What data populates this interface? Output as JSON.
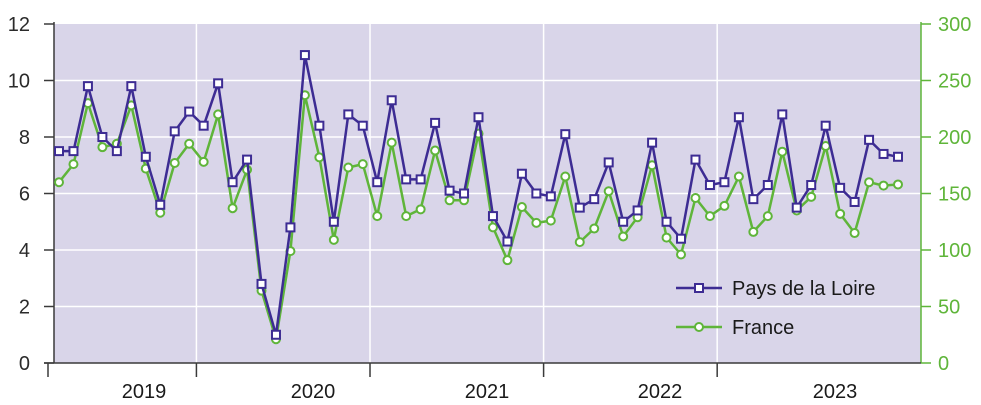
{
  "chart_data": {
    "type": "line",
    "x_categories_label": "year",
    "years": [
      "2019",
      "2020",
      "2021",
      "2022",
      "2023"
    ],
    "left_axis": {
      "ylim": [
        0,
        12
      ],
      "ticks": [
        "0",
        "2",
        "4",
        "6",
        "8",
        "10",
        "12"
      ]
    },
    "right_axis": {
      "ylim": [
        0,
        300
      ],
      "ticks": [
        "0",
        "50",
        "100",
        "150",
        "200",
        "250",
        "300"
      ]
    },
    "grid": true,
    "legend_position": "bottom-right",
    "series": [
      {
        "name": "Pays de la Loire",
        "axis": "left",
        "color": "#3d2c93",
        "marker": "square",
        "values": [
          7.5,
          7.5,
          9.8,
          8.0,
          7.5,
          9.8,
          7.3,
          5.6,
          8.2,
          8.9,
          8.4,
          9.9,
          6.4,
          7.2,
          2.8,
          1.0,
          4.8,
          10.9,
          8.4,
          5.0,
          8.8,
          8.4,
          6.4,
          9.3,
          6.5,
          6.5,
          8.5,
          6.1,
          6.0,
          8.7,
          5.2,
          4.3,
          6.7,
          6.0,
          5.9,
          8.1,
          5.5,
          5.8,
          7.1,
          5.0,
          5.4,
          7.8,
          5.0,
          4.4,
          7.2,
          6.3,
          6.4,
          8.7,
          5.8,
          6.3,
          8.8,
          5.5,
          6.3,
          8.4,
          6.2,
          5.7,
          7.9,
          7.4,
          7.3
        ]
      },
      {
        "name": "France",
        "axis": "right",
        "color": "#5fb53a",
        "marker": "circle",
        "values": [
          160,
          176,
          230,
          191,
          194,
          228,
          172,
          133,
          177,
          194,
          178,
          220,
          137,
          171,
          64,
          21,
          99,
          237,
          182,
          109,
          173,
          176,
          130,
          195,
          130,
          136,
          188,
          144,
          144,
          203,
          120,
          91,
          138,
          124,
          126,
          165,
          107,
          119,
          152,
          112,
          129,
          175,
          111,
          96,
          146,
          130,
          139,
          165,
          116,
          130,
          187,
          135,
          147,
          192,
          132,
          115,
          160,
          157,
          158
        ]
      }
    ]
  }
}
